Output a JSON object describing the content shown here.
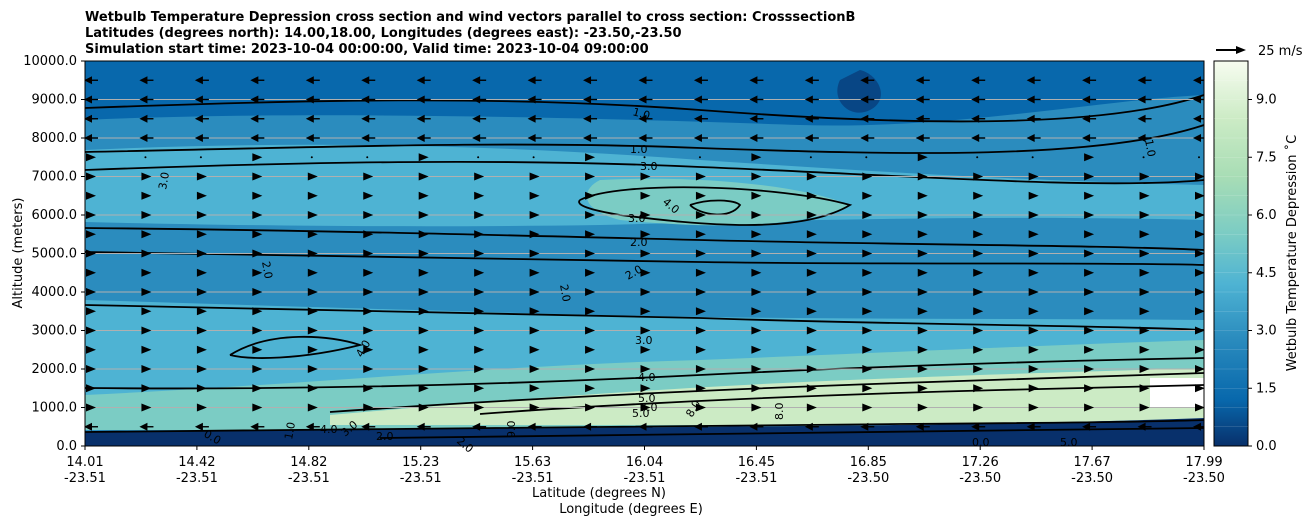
{
  "chart_data": {
    "type": "contour",
    "title_lines": [
      "Wetbulb Temperature Depression cross section and wind vectors parallel to cross section: CrosssectionB",
      "Latitudes (degrees north): 14.00,18.00, Longitudes (degrees east): -23.50,-23.50",
      "Simulation start time: 2023-10-04 00:00:00, Valid time: 2023-10-04 09:00:00"
    ],
    "ylabel": "Altitude (meters)",
    "xlabel_lines": [
      "Latitude (degrees N)",
      "Longitude (degrees E)"
    ],
    "y_ticks": [
      "0.0",
      "1000.0",
      "2000.0",
      "3000.0",
      "4000.0",
      "5000.0",
      "6000.0",
      "7000.0",
      "8000.0",
      "9000.0",
      "10000.0"
    ],
    "ylim": [
      0,
      10000
    ],
    "x_ticks": [
      {
        "lat": "14.01",
        "lon": "-23.51"
      },
      {
        "lat": "14.42",
        "lon": "-23.51"
      },
      {
        "lat": "14.82",
        "lon": "-23.51"
      },
      {
        "lat": "15.23",
        "lon": "-23.51"
      },
      {
        "lat": "15.63",
        "lon": "-23.51"
      },
      {
        "lat": "16.04",
        "lon": "-23.51"
      },
      {
        "lat": "16.45",
        "lon": "-23.51"
      },
      {
        "lat": "16.85",
        "lon": "-23.50"
      },
      {
        "lat": "17.26",
        "lon": "-23.50"
      },
      {
        "lat": "17.67",
        "lon": "-23.50"
      },
      {
        "lat": "17.99",
        "lon": "-23.50"
      }
    ],
    "colorbar": {
      "label": "Wetbulb Temperature Depression ˚C",
      "ticks": [
        "0.0",
        "1.5",
        "3.0",
        "4.5",
        "6.0",
        "7.5",
        "9.0"
      ],
      "range": [
        0,
        10
      ],
      "levels": 20
    },
    "wind_key": "25 m/s",
    "contour_labels": [
      "1.0",
      "1.0",
      "1.0",
      "2.0",
      "2.0",
      "2.0",
      "2.0",
      "3.0",
      "3.0",
      "3.0",
      "3.0",
      "4.0",
      "4.0",
      "4.0",
      "4.0",
      "5.0",
      "5.0",
      "7.0",
      "8.0",
      "8.0",
      "9.0",
      "0.0",
      "0.0",
      "1.0",
      "2.0",
      "2.0",
      "3.0",
      "5.0",
      "4.5",
      "1.0"
    ],
    "wind_rows": [
      {
        "alt": 9500,
        "dir": "west"
      },
      {
        "alt": 9000,
        "dir": "west"
      },
      {
        "alt": 8500,
        "dir": "west"
      },
      {
        "alt": 8000,
        "dir": "west"
      },
      {
        "alt": 7500,
        "dir": "mixed"
      },
      {
        "alt": 7000,
        "dir": "east"
      },
      {
        "alt": 6500,
        "dir": "east"
      },
      {
        "alt": 6000,
        "dir": "east"
      },
      {
        "alt": 5500,
        "dir": "east"
      },
      {
        "alt": 5000,
        "dir": "east"
      },
      {
        "alt": 4500,
        "dir": "east"
      },
      {
        "alt": 4000,
        "dir": "east"
      },
      {
        "alt": 3500,
        "dir": "east"
      },
      {
        "alt": 3000,
        "dir": "east"
      },
      {
        "alt": 2500,
        "dir": "east"
      },
      {
        "alt": 2000,
        "dir": "east"
      },
      {
        "alt": 1500,
        "dir": "east"
      },
      {
        "alt": 1000,
        "dir": "east"
      },
      {
        "alt": 500,
        "dir": "west"
      }
    ]
  }
}
